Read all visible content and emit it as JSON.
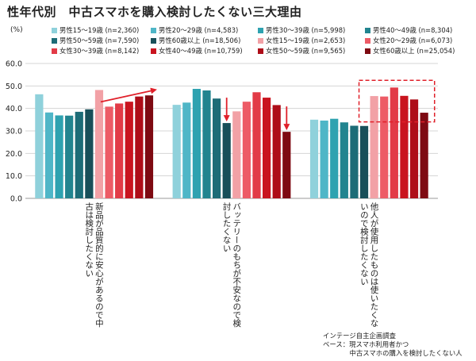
{
  "chart_data": {
    "type": "bar",
    "title": "性年代別　中古スマホを購入検討したくない三大理由",
    "ylabel": "(%)",
    "ylim": [
      0,
      60
    ],
    "yticks": [
      "0.0",
      "10.0",
      "20.0",
      "30.0",
      "40.0",
      "50.0",
      "60.0"
    ],
    "grid": true,
    "legend_position": "top",
    "categories": [
      [
        "新品が品質的に安心があるので中",
        "古は検討したくない"
      ],
      [
        "バッテリーのもちが不安なので検",
        "討したくない"
      ],
      [
        "他人が使用したものは使いたくな",
        "いので検討したくない"
      ]
    ],
    "series": [
      {
        "name": "男性15～19歳 (n=2,360)",
        "color": "#8fd1db",
        "values": [
          46.3,
          41.6,
          35.0
        ]
      },
      {
        "name": "男性20～29歳 (n=4,583)",
        "color": "#4fb6c7",
        "values": [
          38.2,
          42.6,
          34.6
        ]
      },
      {
        "name": "男性30～39歳 (n=5,998)",
        "color": "#2ea2b0",
        "values": [
          36.9,
          48.7,
          35.4
        ]
      },
      {
        "name": "男性40～49歳 (n=8,304)",
        "color": "#22848f",
        "values": [
          36.8,
          48.0,
          33.8
        ]
      },
      {
        "name": "男性50～59歳 (n=7,590)",
        "color": "#1d6c77",
        "values": [
          38.5,
          44.4,
          32.3
        ]
      },
      {
        "name": "男性60歳以上 (n=18,506)",
        "color": "#184f59",
        "values": [
          39.6,
          33.5,
          32.2
        ]
      },
      {
        "name": "女性15～19歳 (n=2,653)",
        "color": "#f2a1a6",
        "values": [
          48.2,
          38.7,
          45.5
        ]
      },
      {
        "name": "女性20～29歳 (n=6,073)",
        "color": "#ed5b66",
        "values": [
          40.8,
          43.0,
          45.3
        ]
      },
      {
        "name": "女性30～39歳 (n=8,142)",
        "color": "#e23b47",
        "values": [
          42.2,
          47.2,
          49.3
        ]
      },
      {
        "name": "女性40～49歳 (n=10,759)",
        "color": "#c9141f",
        "values": [
          43.0,
          44.8,
          45.6
        ]
      },
      {
        "name": "女性50～59歳 (n=9,565)",
        "color": "#ae0d18",
        "values": [
          45.3,
          41.5,
          44.0
        ]
      },
      {
        "name": "女性60歳以上 (n=25,054)",
        "color": "#7e0a12",
        "values": [
          45.8,
          29.6,
          38.1
        ]
      }
    ]
  },
  "notes": [
    "インテージ自主企画調査",
    "ベース：現スマホ利用者かつ",
    "　　　　中古スマホの購入を検討したくない人"
  ]
}
